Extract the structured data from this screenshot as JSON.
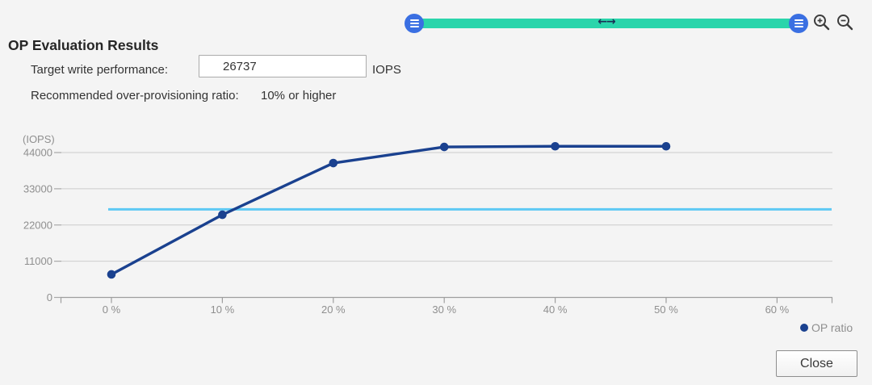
{
  "title": "OP Evaluation Results",
  "target_write_performance": {
    "label": "Target write performance:",
    "value": "26737",
    "unit": "IOPS"
  },
  "recommendation": {
    "label": "Recommended over-provisioning ratio:",
    "value": "10% or higher"
  },
  "slider": {
    "track_color": "#2bd5ab",
    "handle_color": "#3a6fe2",
    "arrows_glyph": "←→"
  },
  "icons": {
    "left_handle": "grip-handle-icon",
    "right_handle": "grip-handle-icon",
    "zoom_in": "magnifier-plus-icon",
    "zoom_out": "magnifier-minus-icon"
  },
  "chart_data": {
    "type": "line",
    "title": "",
    "ylabel": "(IOPS)",
    "xlabel": "",
    "x": [
      0,
      10,
      20,
      30,
      40,
      50
    ],
    "x_ticks": [
      0,
      10,
      20,
      30,
      40,
      50,
      60
    ],
    "x_tick_labels": [
      "0 %",
      "10 %",
      "20 %",
      "30 %",
      "40 %",
      "50 %",
      "60 %"
    ],
    "y_ticks": [
      0,
      11000,
      22000,
      33000,
      44000
    ],
    "ylim": [
      0,
      48000
    ],
    "grid": true,
    "series": [
      {
        "name": "OP ratio",
        "values": [
          7000,
          25100,
          40800,
          45700,
          45900,
          45900
        ],
        "color": "#1a418f"
      }
    ],
    "target_line": {
      "value": 26737,
      "color": "#5ec9f4"
    },
    "legend": [
      {
        "label": "OP ratio",
        "color": "#1a418f"
      }
    ],
    "legend_position": "bottom-right",
    "grid_color": "#cccccc",
    "axis_color": "#9e9e9e",
    "tick_label_color": "#8f8f8f"
  },
  "close_button": {
    "label": "Close"
  }
}
